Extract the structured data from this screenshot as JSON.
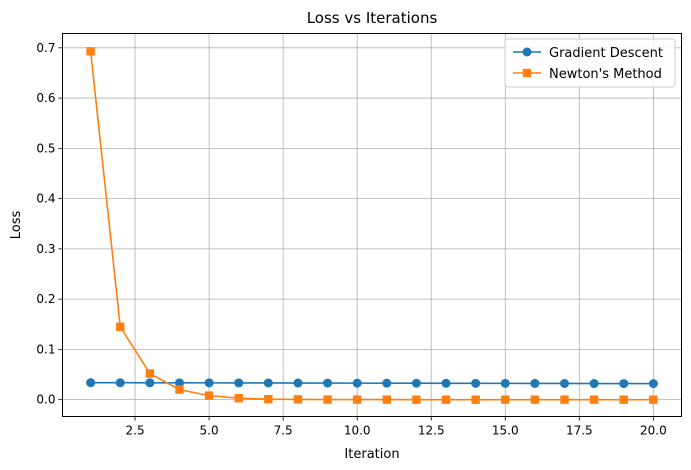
{
  "chart_data": {
    "type": "line",
    "title": "Loss vs Iterations",
    "xlabel": "Iteration",
    "ylabel": "Loss",
    "xlim": [
      0.05,
      20.95
    ],
    "ylim": [
      -0.0335,
      0.7285
    ],
    "grid": true,
    "legend_position": "top-right",
    "x": [
      1,
      2,
      3,
      4,
      5,
      6,
      7,
      8,
      9,
      10,
      11,
      12,
      13,
      14,
      15,
      16,
      17,
      18,
      19,
      20
    ],
    "x_ticks": [
      2.5,
      5.0,
      7.5,
      10.0,
      12.5,
      15.0,
      17.5,
      20.0
    ],
    "x_tick_labels": [
      "2.5",
      "5.0",
      "7.5",
      "10.0",
      "12.5",
      "15.0",
      "17.5",
      "20.0"
    ],
    "y_ticks": [
      0.0,
      0.1,
      0.2,
      0.3,
      0.4,
      0.5,
      0.6,
      0.7
    ],
    "y_tick_labels": [
      "0.0",
      "0.1",
      "0.2",
      "0.3",
      "0.4",
      "0.5",
      "0.6",
      "0.7"
    ],
    "series": [
      {
        "name": "Gradient Descent",
        "color": "#1f77b4",
        "marker": "circle",
        "values": [
          0.0338,
          0.0337,
          0.0336,
          0.0335,
          0.0334,
          0.0333,
          0.0332,
          0.0331,
          0.033,
          0.0329,
          0.0328,
          0.0327,
          0.0326,
          0.0325,
          0.0324,
          0.0323,
          0.0322,
          0.0321,
          0.032,
          0.0319
        ]
      },
      {
        "name": "Newton's Method",
        "color": "#ff7f0e",
        "marker": "square",
        "values": [
          0.693,
          0.145,
          0.052,
          0.02,
          0.008,
          0.003,
          0.001,
          0.0005,
          0.0002,
          0.0001,
          0.0001,
          0.0,
          0.0,
          0.0,
          0.0,
          0.0,
          0.0,
          0.0,
          0.0,
          0.0
        ]
      }
    ]
  }
}
